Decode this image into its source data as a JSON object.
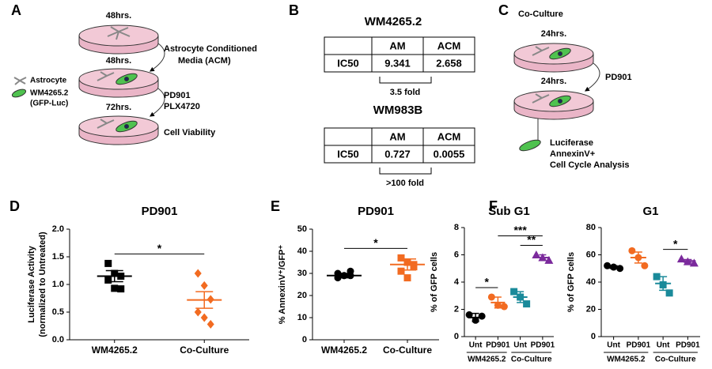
{
  "panel_labels": [
    "A",
    "B",
    "C",
    "D",
    "E",
    "F"
  ],
  "diagram_a": {
    "times": [
      "48hrs.",
      "48hrs.",
      "72hrs."
    ],
    "step_1": [
      "Astrocyte Conditioned",
      "Media (ACM)"
    ],
    "step_2": [
      "PD901",
      "PLX4720"
    ],
    "step_3": "Cell Viability",
    "legend": [
      "Astrocyte",
      "WM4265.2",
      "(GFP-Luc)"
    ]
  },
  "tables": [
    {
      "title": "WM4265.2",
      "columns": [
        "AM",
        "ACM"
      ],
      "row_label": "IC50",
      "values": [
        9.341,
        2.658
      ],
      "fold": "3.5 fold"
    },
    {
      "title": "WM983B",
      "columns": [
        "AM",
        "ACM"
      ],
      "row_label": "IC50",
      "values": [
        0.727,
        0.0055
      ],
      "fold": ">100 fold"
    }
  ],
  "diagram_c": {
    "title": "Co-Culture",
    "times": [
      "24hrs.",
      "24hrs."
    ],
    "drug": "PD901",
    "outputs": [
      "Luciferase",
      "AnnexinV+",
      "Cell Cycle Analysis"
    ]
  },
  "chart_data": [
    {
      "type": "dotplot",
      "title": "PD901",
      "ylabel": [
        "Luciferase Activity",
        "(normalized to Untreated)"
      ],
      "categories": [
        "WM4265.2",
        "Co-Culture"
      ],
      "ylim": [
        0,
        2
      ],
      "yticks": [
        {
          "value": 0,
          "label": "0.0"
        },
        {
          "value": 0.5,
          "label": "0.5"
        },
        {
          "value": 1,
          "label": "1.0"
        },
        {
          "value": 1.5,
          "label": "1.5"
        },
        {
          "value": 2,
          "label": "2.0"
        }
      ],
      "groups": [
        {
          "color": "#000000",
          "marker": "square",
          "values": [
            1.38,
            1.2,
            1.15,
            1.08,
            0.93,
            0.92
          ],
          "mean": 1.15,
          "error": 0.1
        },
        {
          "color": "#f26b21",
          "marker": "diamond",
          "values": [
            1.2,
            0.98,
            0.73,
            0.5,
            0.4,
            0.28
          ],
          "mean": 0.72,
          "error": 0.15
        }
      ],
      "comparisons": [
        {
          "label": "*",
          "groups": [
            0,
            1
          ]
        }
      ]
    },
    {
      "type": "dotplot",
      "title": "PD901",
      "ylabel": [
        "% AnnexinV⁺/GFP⁺"
      ],
      "categories": [
        "WM4265.2",
        "Co-Culture"
      ],
      "ylim": [
        0,
        50
      ],
      "yticks": [
        0,
        10,
        20,
        30,
        40,
        50
      ],
      "groups": [
        {
          "color": "#000000",
          "marker": "circle",
          "values": [
            28,
            29,
            29,
            30,
            29,
            31
          ],
          "mean": 29,
          "error": 1
        },
        {
          "color": "#f26b21",
          "marker": "square",
          "values": [
            37,
            35,
            34,
            31,
            28,
            33
          ],
          "mean": 34,
          "error": 2.5
        }
      ],
      "comparisons": [
        {
          "label": "*",
          "groups": [
            0,
            1
          ]
        }
      ]
    },
    {
      "type": "dotplot",
      "title": "Sub G1",
      "ylabel": [
        "% of GFP cells"
      ],
      "categories": [
        "Unt",
        "PD901",
        "Unt",
        "PD901"
      ],
      "group_labels": [
        {
          "label": "WM4265.2",
          "span": [
            0,
            1
          ]
        },
        {
          "label": "Co-Culture",
          "span": [
            2,
            3
          ]
        }
      ],
      "ylim": [
        0,
        8
      ],
      "yticks": [
        0,
        2,
        4,
        6,
        8
      ],
      "groups": [
        {
          "color": "#000000",
          "marker": "circle",
          "values": [
            1.6,
            1.2,
            1.5
          ],
          "mean": 1.4,
          "error": 0.3
        },
        {
          "color": "#f26b21",
          "marker": "circle",
          "values": [
            2.9,
            2.3,
            2.2
          ],
          "mean": 2.5,
          "error": 0.4
        },
        {
          "color": "#1a8a9a",
          "marker": "square",
          "values": [
            3.3,
            2.9,
            2.4
          ],
          "mean": 2.9,
          "error": 0.4
        },
        {
          "color": "#7b2a9c",
          "marker": "triangle",
          "values": [
            6.0,
            5.8,
            5.6
          ],
          "mean": 5.8,
          "error": 0.2
        }
      ],
      "comparisons": [
        {
          "label": "*",
          "groups": [
            0,
            1
          ]
        },
        {
          "label": "**",
          "groups": [
            2,
            3
          ]
        },
        {
          "label": "***",
          "groups": [
            1,
            3
          ]
        }
      ]
    },
    {
      "type": "dotplot",
      "title": "G1",
      "ylabel": [
        "% of GFP cells"
      ],
      "categories": [
        "Unt",
        "PD901",
        "Unt",
        "PD901"
      ],
      "group_labels": [
        {
          "label": "WM4265.2",
          "span": [
            0,
            1
          ]
        },
        {
          "label": "Co-Culture",
          "span": [
            2,
            3
          ]
        }
      ],
      "ylim": [
        0,
        80
      ],
      "yticks": [
        0,
        20,
        40,
        60,
        80
      ],
      "groups": [
        {
          "color": "#000000",
          "marker": "circle",
          "values": [
            52,
            51,
            50
          ],
          "mean": 51,
          "error": 1
        },
        {
          "color": "#f26b21",
          "marker": "circle",
          "values": [
            63,
            58,
            52
          ],
          "mean": 58,
          "error": 4
        },
        {
          "color": "#1a8a9a",
          "marker": "square",
          "values": [
            44,
            38,
            32
          ],
          "mean": 39,
          "error": 5
        },
        {
          "color": "#7b2a9c",
          "marker": "triangle",
          "values": [
            57,
            55,
            54
          ],
          "mean": 55.5,
          "error": 1
        }
      ],
      "comparisons": [
        {
          "label": "*",
          "groups": [
            2,
            3
          ]
        }
      ]
    }
  ]
}
